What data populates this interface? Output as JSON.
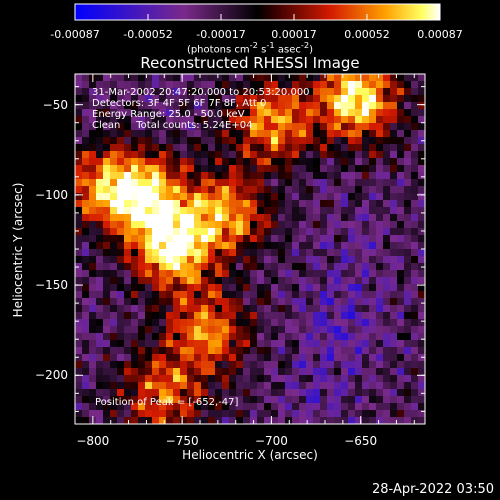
{
  "colorbar": {
    "ticks": [
      "-0.00087",
      "-0.00052",
      "-0.00017",
      "0.00017",
      "0.00052",
      "0.00087"
    ],
    "unit_html": "(photons cm<sup>-2</sup> s<sup>-1</sup> asec<sup>-2</sup>)",
    "min": -0.00087,
    "max": 0.00087
  },
  "info": {
    "time_range": "31-Mar-2002 20:47:20.000 to 20:53:20.000",
    "detectors": "Detectors: 3F 4F 5F 6F 7F 8F, Att 0",
    "energy": "Energy Range: 25.0 - 50.0 keV",
    "algorithm": "Clean     Total counts: 5.24E+04"
  },
  "peak_text": "Position of Peak = [-652,-47]",
  "timestamp": "28-Apr-2022 03:50",
  "chart_data": {
    "type": "heatmap",
    "title": "Reconstructed RHESSI Image",
    "xlabel": "Heliocentric X (arcsec)",
    "ylabel": "Heliocentric Y (arcsec)",
    "xlim": [
      -810,
      -614
    ],
    "ylim": [
      -227,
      -33
    ],
    "xticks": [
      -800,
      -750,
      -700,
      -650
    ],
    "yticks": [
      -50,
      -100,
      -150,
      -200
    ],
    "colormap": "rainbow-blue-purple-red-yellow-white",
    "bright_regions": [
      {
        "x": -652,
        "y": -47,
        "intensity": 0.00087
      },
      {
        "x": -770,
        "y": -100,
        "intensity": 0.0007
      },
      {
        "x": -755,
        "y": -130,
        "intensity": 0.0008
      },
      {
        "x": -725,
        "y": -110,
        "intensity": 0.0006
      },
      {
        "x": -795,
        "y": -95,
        "intensity": 0.0005
      },
      {
        "x": -700,
        "y": -60,
        "intensity": 0.0006
      },
      {
        "x": -735,
        "y": -175,
        "intensity": 0.00055
      },
      {
        "x": -760,
        "y": -210,
        "intensity": 0.0005
      }
    ],
    "dark_regions": [
      {
        "x": -660,
        "y": -170,
        "intensity": -0.00045
      },
      {
        "x": -650,
        "y": -130,
        "intensity": -0.0003
      },
      {
        "x": -675,
        "y": -210,
        "intensity": -0.00035
      }
    ]
  }
}
